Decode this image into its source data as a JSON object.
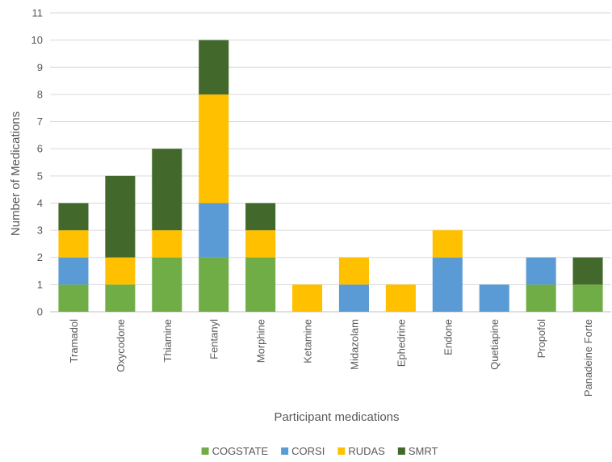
{
  "chart_data": {
    "type": "bar",
    "stacked": true,
    "title": "",
    "xlabel": "Participant medications",
    "ylabel": "Number of Medications",
    "ylim": [
      0,
      11
    ],
    "yticks": [
      0,
      1,
      2,
      3,
      4,
      5,
      6,
      7,
      8,
      9,
      10,
      11
    ],
    "grid": true,
    "legend_position": "bottom",
    "categories": [
      "Tramadol",
      "Oxycodone",
      "Thiamine",
      "Fentanyl",
      "Morphine",
      "Ketamine",
      "Midazolam",
      "Ephedrine",
      "Endone",
      "Quetiapine",
      "Propofol",
      "Panadeine Forte"
    ],
    "series": [
      {
        "name": "COGSTATE",
        "color": "#70AD47",
        "values": [
          1,
          1,
          2,
          2,
          2,
          0,
          0,
          0,
          0,
          0,
          1,
          1
        ]
      },
      {
        "name": "CORSI",
        "color": "#5B9BD5",
        "values": [
          1,
          0,
          0,
          2,
          0,
          0,
          1,
          0,
          2,
          1,
          1,
          0
        ]
      },
      {
        "name": "RUDAS",
        "color": "#FFC000",
        "values": [
          1,
          1,
          1,
          4,
          1,
          1,
          1,
          1,
          1,
          0,
          0,
          0
        ]
      },
      {
        "name": "SMRT",
        "color": "#43682B",
        "values": [
          1,
          3,
          3,
          2,
          1,
          0,
          0,
          0,
          0,
          0,
          0,
          1
        ]
      }
    ]
  }
}
